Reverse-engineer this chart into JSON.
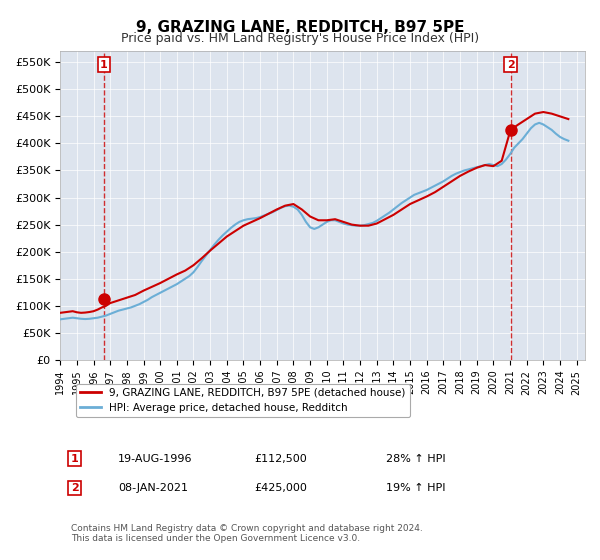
{
  "title": "9, GRAZING LANE, REDDITCH, B97 5PE",
  "subtitle": "Price paid vs. HM Land Registry's House Price Index (HPI)",
  "ylabel": "",
  "ylim": [
    0,
    570000
  ],
  "yticks": [
    0,
    50000,
    100000,
    150000,
    200000,
    250000,
    300000,
    350000,
    400000,
    450000,
    500000,
    550000
  ],
  "ytick_labels": [
    "£0",
    "£50K",
    "£100K",
    "£150K",
    "£200K",
    "£250K",
    "£300K",
    "£350K",
    "£400K",
    "£450K",
    "£500K",
    "£550K"
  ],
  "hpi_color": "#6baed6",
  "price_color": "#cc0000",
  "marker_color": "#cc0000",
  "dashed_color": "#cc0000",
  "bg_color": "#f0f0f0",
  "plot_bg": "#e8e8f0",
  "annotation_box_color": "#cc0000",
  "legend_label_price": "9, GRAZING LANE, REDDITCH, B97 5PE (detached house)",
  "legend_label_hpi": "HPI: Average price, detached house, Redditch",
  "sale1_date": "19-AUG-1996",
  "sale1_price": "£112,500",
  "sale1_hpi": "28% ↑ HPI",
  "sale1_year": 1996.63,
  "sale1_value": 112500,
  "sale2_date": "08-JAN-2021",
  "sale2_price": "£425,000",
  "sale2_hpi": "19% ↑ HPI",
  "sale2_year": 2021.03,
  "sale2_value": 425000,
  "copyright": "Contains HM Land Registry data © Crown copyright and database right 2024.\nThis data is licensed under the Open Government Licence v3.0.",
  "hpi_years": [
    1994.0,
    1994.25,
    1994.5,
    1994.75,
    1995.0,
    1995.25,
    1995.5,
    1995.75,
    1996.0,
    1996.25,
    1996.5,
    1996.75,
    1997.0,
    1997.25,
    1997.5,
    1997.75,
    1998.0,
    1998.25,
    1998.5,
    1998.75,
    1999.0,
    1999.25,
    1999.5,
    1999.75,
    2000.0,
    2000.25,
    2000.5,
    2000.75,
    2001.0,
    2001.25,
    2001.5,
    2001.75,
    2002.0,
    2002.25,
    2002.5,
    2002.75,
    2003.0,
    2003.25,
    2003.5,
    2003.75,
    2004.0,
    2004.25,
    2004.5,
    2004.75,
    2005.0,
    2005.25,
    2005.5,
    2005.75,
    2006.0,
    2006.25,
    2006.5,
    2006.75,
    2007.0,
    2007.25,
    2007.5,
    2007.75,
    2008.0,
    2008.25,
    2008.5,
    2008.75,
    2009.0,
    2009.25,
    2009.5,
    2009.75,
    2010.0,
    2010.25,
    2010.5,
    2010.75,
    2011.0,
    2011.25,
    2011.5,
    2011.75,
    2012.0,
    2012.25,
    2012.5,
    2012.75,
    2013.0,
    2013.25,
    2013.5,
    2013.75,
    2014.0,
    2014.25,
    2014.5,
    2014.75,
    2015.0,
    2015.25,
    2015.5,
    2015.75,
    2016.0,
    2016.25,
    2016.5,
    2016.75,
    2017.0,
    2017.25,
    2017.5,
    2017.75,
    2018.0,
    2018.25,
    2018.5,
    2018.75,
    2019.0,
    2019.25,
    2019.5,
    2019.75,
    2020.0,
    2020.25,
    2020.5,
    2020.75,
    2021.0,
    2021.25,
    2021.5,
    2021.75,
    2022.0,
    2022.25,
    2022.5,
    2022.75,
    2023.0,
    2023.25,
    2023.5,
    2023.75,
    2024.0,
    2024.25,
    2024.5
  ],
  "hpi_values": [
    75000,
    76000,
    77000,
    78000,
    77000,
    76000,
    75500,
    76000,
    77000,
    78000,
    80000,
    82000,
    85000,
    88000,
    91000,
    93000,
    95000,
    97000,
    100000,
    103000,
    107000,
    111000,
    116000,
    120000,
    124000,
    128000,
    132000,
    136000,
    140000,
    145000,
    150000,
    155000,
    162000,
    172000,
    183000,
    193000,
    203000,
    213000,
    222000,
    230000,
    237000,
    244000,
    250000,
    255000,
    258000,
    260000,
    261000,
    262000,
    264000,
    267000,
    270000,
    273000,
    277000,
    281000,
    284000,
    285000,
    283000,
    278000,
    268000,
    255000,
    245000,
    242000,
    245000,
    250000,
    255000,
    258000,
    258000,
    255000,
    252000,
    250000,
    249000,
    248000,
    248000,
    249000,
    251000,
    253000,
    257000,
    262000,
    267000,
    272000,
    278000,
    284000,
    290000,
    295000,
    300000,
    305000,
    308000,
    311000,
    314000,
    318000,
    322000,
    326000,
    330000,
    335000,
    340000,
    344000,
    347000,
    350000,
    352000,
    354000,
    356000,
    358000,
    360000,
    362000,
    360000,
    358000,
    362000,
    370000,
    380000,
    392000,
    400000,
    408000,
    418000,
    428000,
    435000,
    438000,
    435000,
    430000,
    425000,
    418000,
    412000,
    408000,
    405000
  ],
  "price_years": [
    1994.0,
    1994.25,
    1994.5,
    1994.75,
    1995.0,
    1995.25,
    1995.5,
    1995.75,
    1996.0,
    1996.25,
    1996.5,
    1996.75,
    1997.0,
    1997.5,
    1998.0,
    1998.5,
    1999.0,
    1999.5,
    2000.0,
    2000.5,
    2001.0,
    2001.5,
    2002.0,
    2002.5,
    2003.0,
    2003.5,
    2004.0,
    2004.5,
    2005.0,
    2005.5,
    2006.0,
    2006.5,
    2007.0,
    2007.5,
    2008.0,
    2008.5,
    2009.0,
    2009.5,
    2010.0,
    2010.5,
    2011.0,
    2011.5,
    2012.0,
    2012.5,
    2013.0,
    2013.5,
    2014.0,
    2014.5,
    2015.0,
    2015.5,
    2016.0,
    2016.5,
    2017.0,
    2017.5,
    2018.0,
    2018.5,
    2019.0,
    2019.5,
    2020.0,
    2020.5,
    2021.03,
    2021.5,
    2022.0,
    2022.5,
    2023.0,
    2023.5,
    2024.0,
    2024.5
  ],
  "price_values": [
    87000,
    88000,
    89000,
    90000,
    88000,
    87000,
    87500,
    88500,
    90000,
    93000,
    97000,
    100000,
    105000,
    110000,
    115000,
    120000,
    128000,
    135000,
    142000,
    150000,
    158000,
    165000,
    175000,
    188000,
    202000,
    215000,
    228000,
    238000,
    248000,
    255000,
    262000,
    270000,
    278000,
    285000,
    288000,
    278000,
    265000,
    258000,
    258000,
    260000,
    255000,
    250000,
    248000,
    248000,
    252000,
    260000,
    268000,
    278000,
    288000,
    295000,
    302000,
    310000,
    320000,
    330000,
    340000,
    348000,
    355000,
    360000,
    358000,
    368000,
    425000,
    435000,
    445000,
    455000,
    458000,
    455000,
    450000,
    445000
  ],
  "xlim": [
    1994.0,
    2025.5
  ],
  "xticks": [
    1994,
    1995,
    1996,
    1997,
    1998,
    1999,
    2000,
    2001,
    2002,
    2003,
    2004,
    2005,
    2006,
    2007,
    2008,
    2009,
    2010,
    2011,
    2012,
    2013,
    2014,
    2015,
    2016,
    2017,
    2018,
    2019,
    2020,
    2021,
    2022,
    2023,
    2024,
    2025
  ]
}
